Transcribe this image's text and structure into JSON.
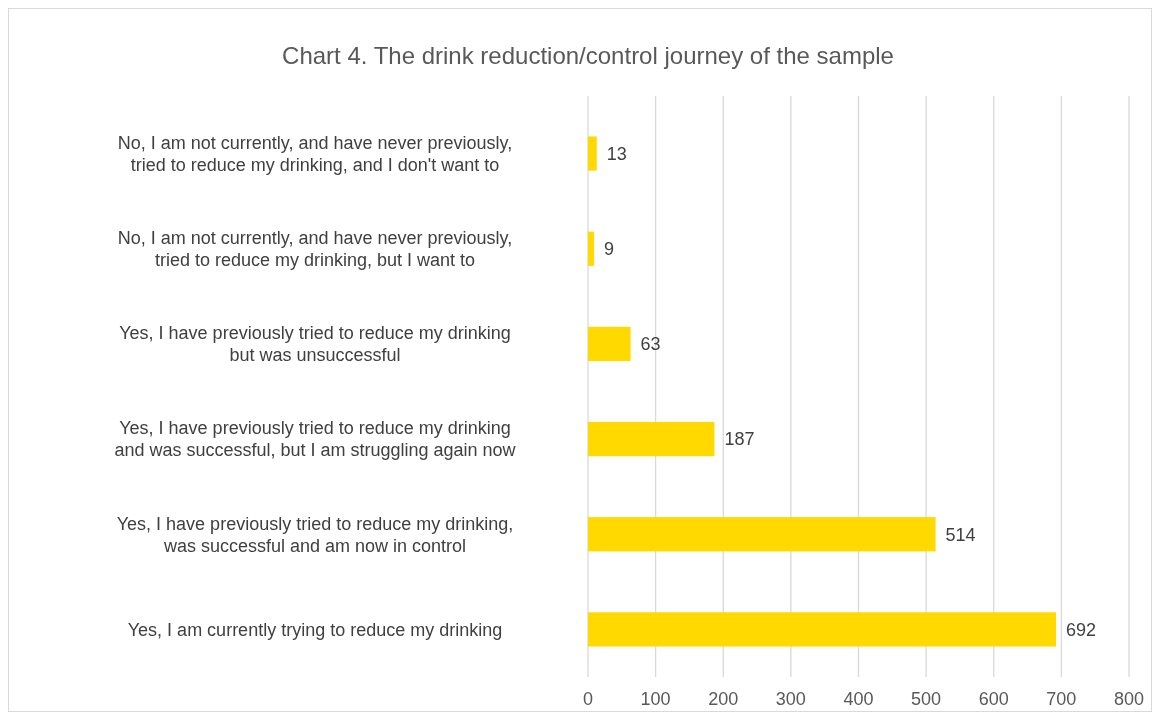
{
  "chart_data": {
    "type": "bar",
    "orientation": "horizontal",
    "title": "Chart 4. The drink reduction/control journey of the sample",
    "categories": [
      "No, I am not currently, and have never previously, tried to reduce my drinking, and I don't want to",
      "No, I am not currently, and have never previously, tried to reduce my drinking, but I want to",
      "Yes, I have previously tried to reduce my drinking but was unsuccessful",
      "Yes, I have previously tried to reduce my drinking and was successful, but I am struggling again now",
      "Yes, I have previously tried to reduce my drinking, was successful and am now in control",
      "Yes, I am currently trying to reduce my drinking"
    ],
    "values": [
      13,
      9,
      63,
      187,
      514,
      692
    ],
    "color": "#ffd900",
    "data_labels": true,
    "xlim": [
      0,
      800
    ],
    "xticks": [
      0,
      100,
      200,
      300,
      400,
      500,
      600,
      700,
      800
    ],
    "grid": "x"
  }
}
